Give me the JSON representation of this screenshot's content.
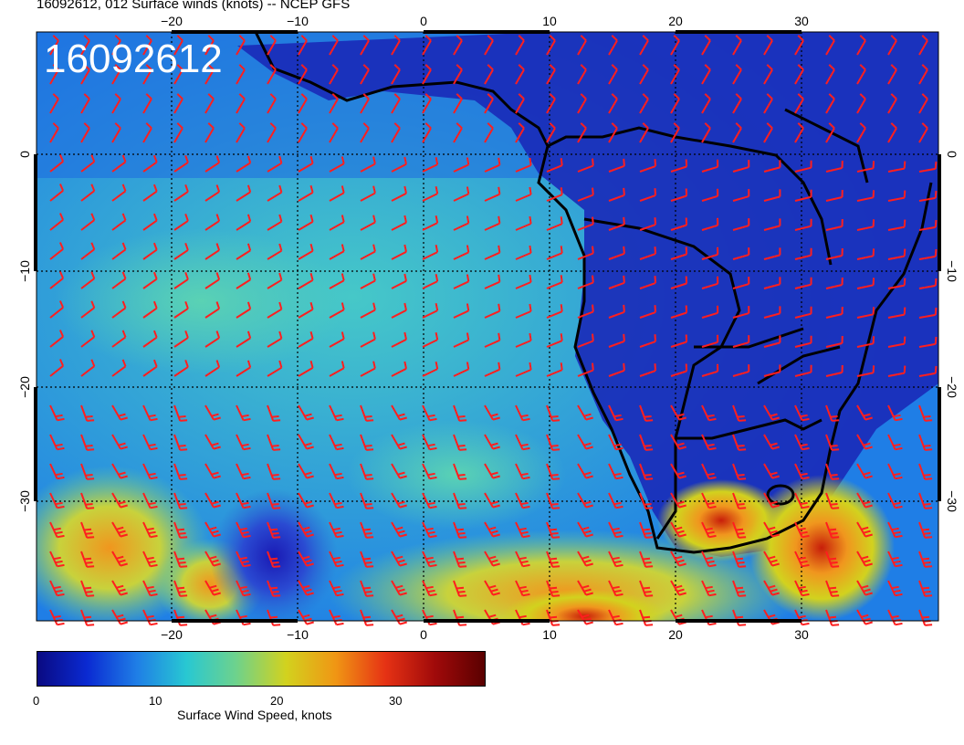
{
  "title": "16092612, 012 Surface winds (knots) -- NCEP GFS",
  "stamp": "16092612",
  "axes": {
    "x_ticks": [
      "−20",
      "−10",
      "0",
      "10",
      "20",
      "30"
    ],
    "y_ticks": [
      "0",
      "−10",
      "−20",
      "−30"
    ]
  },
  "colorbar": {
    "label": "Surface Wind Speed, knots",
    "ticks": [
      "0",
      "10",
      "20",
      "30"
    ],
    "colors": [
      "#0a0a82",
      "#0a2ad2",
      "#1f7ee6",
      "#28c8d2",
      "#6ed28c",
      "#d2d21e",
      "#f09614",
      "#e63214",
      "#a00a0a",
      "#5a0000"
    ]
  },
  "overlay": {
    "barb_color": "#ff1e1e",
    "coastline_color": "#000000"
  }
}
